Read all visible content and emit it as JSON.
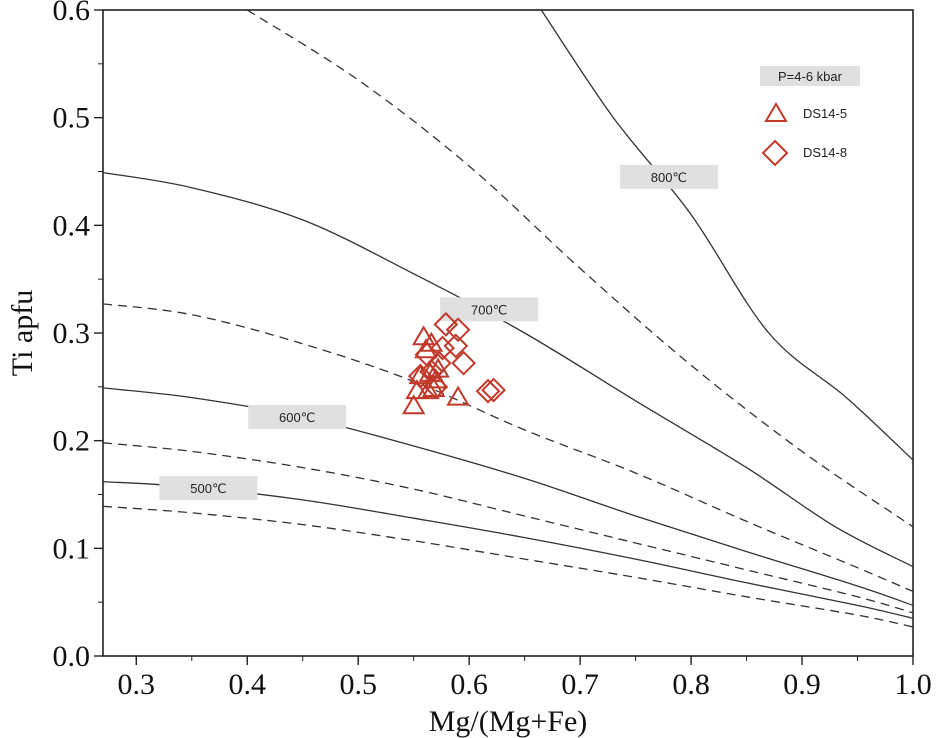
{
  "chart_data": {
    "type": "scatter",
    "title": "",
    "xlabel": "Mg/(Mg+Fe)",
    "ylabel": "Ti apfu",
    "xlim": [
      0.27,
      1.0
    ],
    "ylim": [
      0.0,
      0.6
    ],
    "x_ticks": [
      "0.3",
      "0.4",
      "0.5",
      "0.6",
      "0.7",
      "0.8",
      "0.9",
      "1.0"
    ],
    "y_ticks": [
      "0.0",
      "0.1",
      "0.2",
      "0.3",
      "0.4",
      "0.5",
      "0.6"
    ],
    "grid": false,
    "colors": {
      "points": "#c0392b",
      "curves": "#333333",
      "label_box": "#e0e0e0"
    },
    "legend": {
      "position": "top-right",
      "title": "P=4-6 kbar",
      "entries": [
        {
          "label": "DS14-5",
          "marker": "triangle"
        },
        {
          "label": "DS14-8",
          "marker": "diamond"
        }
      ]
    },
    "isotherm_labels": [
      {
        "label": "800℃",
        "x": 0.78,
        "y": 0.445
      },
      {
        "label": "700℃",
        "x": 0.618,
        "y": 0.322
      },
      {
        "label": "600℃",
        "x": 0.445,
        "y": 0.222
      },
      {
        "label": "500℃",
        "x": 0.365,
        "y": 0.156
      }
    ],
    "isotherms": [
      {
        "name": "800 solid",
        "style": "solid",
        "points": [
          [
            0.665,
            0.6
          ],
          [
            0.73,
            0.5
          ],
          [
            0.8,
            0.41
          ],
          [
            0.87,
            0.3
          ],
          [
            0.94,
            0.24
          ],
          [
            1.0,
            0.182
          ]
        ]
      },
      {
        "name": "750 dashed",
        "style": "dashed",
        "points": [
          [
            0.4,
            0.6
          ],
          [
            0.5,
            0.535
          ],
          [
            0.6,
            0.455
          ],
          [
            0.7,
            0.36
          ],
          [
            0.8,
            0.27
          ],
          [
            0.9,
            0.19
          ],
          [
            1.0,
            0.12
          ]
        ]
      },
      {
        "name": "700 solid",
        "style": "solid",
        "points": [
          [
            0.27,
            0.449
          ],
          [
            0.35,
            0.435
          ],
          [
            0.45,
            0.405
          ],
          [
            0.55,
            0.355
          ],
          [
            0.65,
            0.3
          ],
          [
            0.75,
            0.237
          ],
          [
            0.85,
            0.175
          ],
          [
            0.93,
            0.12
          ],
          [
            1.0,
            0.083
          ]
        ]
      },
      {
        "name": "650 dashed",
        "style": "dashed",
        "points": [
          [
            0.27,
            0.327
          ],
          [
            0.35,
            0.317
          ],
          [
            0.45,
            0.29
          ],
          [
            0.55,
            0.255
          ],
          [
            0.65,
            0.21
          ],
          [
            0.75,
            0.17
          ],
          [
            0.85,
            0.125
          ],
          [
            0.95,
            0.082
          ],
          [
            1.0,
            0.06
          ]
        ]
      },
      {
        "name": "600 solid",
        "style": "solid",
        "points": [
          [
            0.27,
            0.249
          ],
          [
            0.35,
            0.24
          ],
          [
            0.45,
            0.222
          ],
          [
            0.55,
            0.195
          ],
          [
            0.65,
            0.165
          ],
          [
            0.75,
            0.13
          ],
          [
            0.85,
            0.097
          ],
          [
            0.95,
            0.065
          ],
          [
            1.0,
            0.047
          ]
        ]
      },
      {
        "name": "550 dashed",
        "style": "dashed",
        "points": [
          [
            0.27,
            0.198
          ],
          [
            0.35,
            0.19
          ],
          [
            0.45,
            0.175
          ],
          [
            0.55,
            0.155
          ],
          [
            0.65,
            0.13
          ],
          [
            0.75,
            0.105
          ],
          [
            0.85,
            0.08
          ],
          [
            0.95,
            0.055
          ],
          [
            1.0,
            0.04
          ]
        ]
      },
      {
        "name": "500 solid",
        "style": "solid",
        "points": [
          [
            0.27,
            0.162
          ],
          [
            0.35,
            0.157
          ],
          [
            0.45,
            0.145
          ],
          [
            0.55,
            0.128
          ],
          [
            0.65,
            0.11
          ],
          [
            0.75,
            0.09
          ],
          [
            0.85,
            0.068
          ],
          [
            0.95,
            0.047
          ],
          [
            1.0,
            0.035
          ]
        ]
      },
      {
        "name": "450 dashed",
        "style": "dashed",
        "points": [
          [
            0.27,
            0.139
          ],
          [
            0.35,
            0.133
          ],
          [
            0.45,
            0.122
          ],
          [
            0.55,
            0.107
          ],
          [
            0.65,
            0.09
          ],
          [
            0.75,
            0.073
          ],
          [
            0.85,
            0.055
          ],
          [
            0.95,
            0.038
          ],
          [
            1.0,
            0.027
          ]
        ]
      }
    ],
    "series": [
      {
        "name": "DS14-5",
        "marker": "triangle",
        "points": [
          [
            0.55,
            0.232
          ],
          [
            0.553,
            0.246
          ],
          [
            0.556,
            0.26
          ],
          [
            0.559,
            0.296
          ],
          [
            0.561,
            0.284
          ],
          [
            0.563,
            0.246
          ],
          [
            0.565,
            0.262
          ],
          [
            0.568,
            0.248
          ],
          [
            0.57,
            0.256
          ],
          [
            0.572,
            0.266
          ],
          [
            0.566,
            0.29
          ],
          [
            0.59,
            0.24
          ]
        ]
      },
      {
        "name": "DS14-8",
        "marker": "diamond",
        "points": [
          [
            0.556,
            0.26
          ],
          [
            0.562,
            0.28
          ],
          [
            0.566,
            0.264
          ],
          [
            0.57,
            0.25
          ],
          [
            0.573,
            0.272
          ],
          [
            0.576,
            0.286
          ],
          [
            0.579,
            0.308
          ],
          [
            0.59,
            0.303
          ],
          [
            0.588,
            0.288
          ],
          [
            0.595,
            0.272
          ],
          [
            0.617,
            0.246
          ],
          [
            0.622,
            0.247
          ]
        ]
      }
    ]
  }
}
